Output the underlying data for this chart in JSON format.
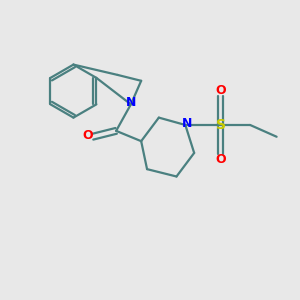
{
  "bg_color": "#e8e8e8",
  "bond_color": "#4a8080",
  "N_color": "#0000ff",
  "O_color": "#ff0000",
  "S_color": "#cccc00",
  "line_width": 1.6,
  "figsize": [
    3.0,
    3.0
  ],
  "dpi": 100,
  "xlim": [
    0,
    10
  ],
  "ylim": [
    0,
    10
  ]
}
